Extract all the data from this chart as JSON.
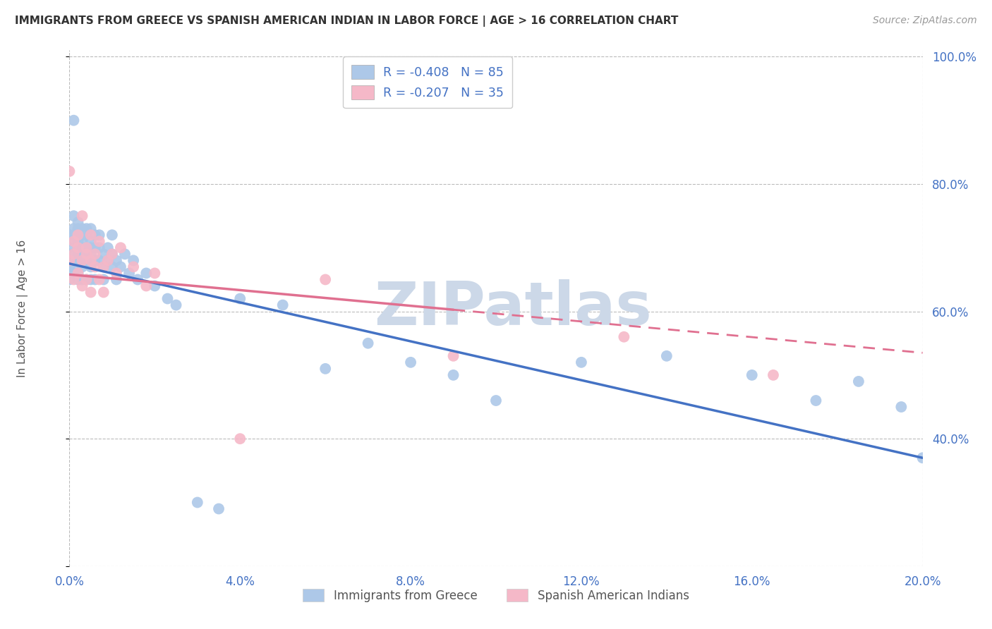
{
  "title": "IMMIGRANTS FROM GREECE VS SPANISH AMERICAN INDIAN IN LABOR FORCE | AGE > 16 CORRELATION CHART",
  "source": "Source: ZipAtlas.com",
  "ylabel": "In Labor Force | Age > 16",
  "watermark": "ZIPatlas",
  "blue_series": {
    "name": "Immigrants from Greece",
    "R": -0.408,
    "N": 85,
    "color": "#adc8e8",
    "line_color": "#4472c4",
    "x": [
      0.0,
      0.0,
      0.0,
      0.0,
      0.0,
      0.001,
      0.001,
      0.001,
      0.001,
      0.001,
      0.001,
      0.001,
      0.001,
      0.001,
      0.002,
      0.002,
      0.002,
      0.002,
      0.002,
      0.002,
      0.002,
      0.002,
      0.002,
      0.003,
      0.003,
      0.003,
      0.003,
      0.003,
      0.003,
      0.003,
      0.003,
      0.004,
      0.004,
      0.004,
      0.004,
      0.004,
      0.004,
      0.005,
      0.005,
      0.005,
      0.005,
      0.005,
      0.005,
      0.006,
      0.006,
      0.006,
      0.006,
      0.007,
      0.007,
      0.007,
      0.008,
      0.008,
      0.008,
      0.009,
      0.009,
      0.01,
      0.01,
      0.01,
      0.011,
      0.011,
      0.012,
      0.013,
      0.014,
      0.015,
      0.016,
      0.018,
      0.02,
      0.023,
      0.025,
      0.03,
      0.035,
      0.04,
      0.05,
      0.06,
      0.07,
      0.08,
      0.09,
      0.1,
      0.12,
      0.14,
      0.16,
      0.175,
      0.185,
      0.195,
      0.2
    ],
    "y": [
      0.68,
      0.72,
      0.65,
      0.7,
      0.67,
      0.69,
      0.73,
      0.66,
      0.71,
      0.68,
      0.75,
      0.72,
      0.9,
      0.67,
      0.7,
      0.73,
      0.69,
      0.65,
      0.72,
      0.68,
      0.71,
      0.66,
      0.74,
      0.7,
      0.73,
      0.68,
      0.72,
      0.69,
      0.65,
      0.71,
      0.67,
      0.73,
      0.68,
      0.7,
      0.65,
      0.72,
      0.69,
      0.7,
      0.73,
      0.67,
      0.69,
      0.65,
      0.71,
      0.7,
      0.68,
      0.72,
      0.65,
      0.7,
      0.68,
      0.72,
      0.69,
      0.67,
      0.65,
      0.7,
      0.68,
      0.69,
      0.67,
      0.72,
      0.68,
      0.65,
      0.67,
      0.69,
      0.66,
      0.68,
      0.65,
      0.66,
      0.64,
      0.62,
      0.61,
      0.3,
      0.29,
      0.62,
      0.61,
      0.51,
      0.55,
      0.52,
      0.5,
      0.46,
      0.52,
      0.53,
      0.5,
      0.46,
      0.49,
      0.45,
      0.37
    ],
    "trend_x": [
      0.0,
      0.2
    ],
    "trend_y": [
      0.675,
      0.37
    ],
    "trend_solid_end": 0.2
  },
  "pink_series": {
    "name": "Spanish American Indians",
    "R": -0.207,
    "N": 35,
    "color": "#f5b8c8",
    "line_color": "#e07090",
    "x": [
      0.0,
      0.0,
      0.001,
      0.001,
      0.001,
      0.002,
      0.002,
      0.002,
      0.003,
      0.003,
      0.003,
      0.004,
      0.004,
      0.004,
      0.005,
      0.005,
      0.005,
      0.006,
      0.006,
      0.007,
      0.007,
      0.008,
      0.008,
      0.009,
      0.01,
      0.011,
      0.012,
      0.015,
      0.018,
      0.02,
      0.04,
      0.06,
      0.09,
      0.13,
      0.165
    ],
    "y": [
      0.82,
      0.68,
      0.71,
      0.65,
      0.69,
      0.72,
      0.66,
      0.7,
      0.64,
      0.68,
      0.75,
      0.7,
      0.65,
      0.69,
      0.63,
      0.68,
      0.72,
      0.69,
      0.67,
      0.65,
      0.71,
      0.67,
      0.63,
      0.68,
      0.69,
      0.66,
      0.7,
      0.67,
      0.64,
      0.66,
      0.4,
      0.65,
      0.53,
      0.56,
      0.5
    ],
    "trend_x": [
      0.0,
      0.2
    ],
    "trend_y": [
      0.658,
      0.535
    ],
    "trend_solid_end": 0.09,
    "trend_dashed_start": 0.09
  },
  "xlim": [
    0.0,
    0.2
  ],
  "ylim": [
    0.2,
    1.01
  ],
  "xticks": [
    0.0,
    0.04,
    0.08,
    0.12,
    0.16,
    0.2
  ],
  "xtick_labels": [
    "0.0%",
    "4.0%",
    "8.0%",
    "12.0%",
    "16.0%",
    "20.0%"
  ],
  "yticks": [
    0.2,
    0.4,
    0.6,
    0.8,
    1.0
  ],
  "ytick_labels_right": [
    "",
    "40.0%",
    "60.0%",
    "80.0%",
    "100.0%"
  ],
  "background_color": "#ffffff",
  "grid_color": "#bbbbbb",
  "title_color": "#333333",
  "axis_tick_color": "#4472c4",
  "watermark_color": "#ccd8e8"
}
